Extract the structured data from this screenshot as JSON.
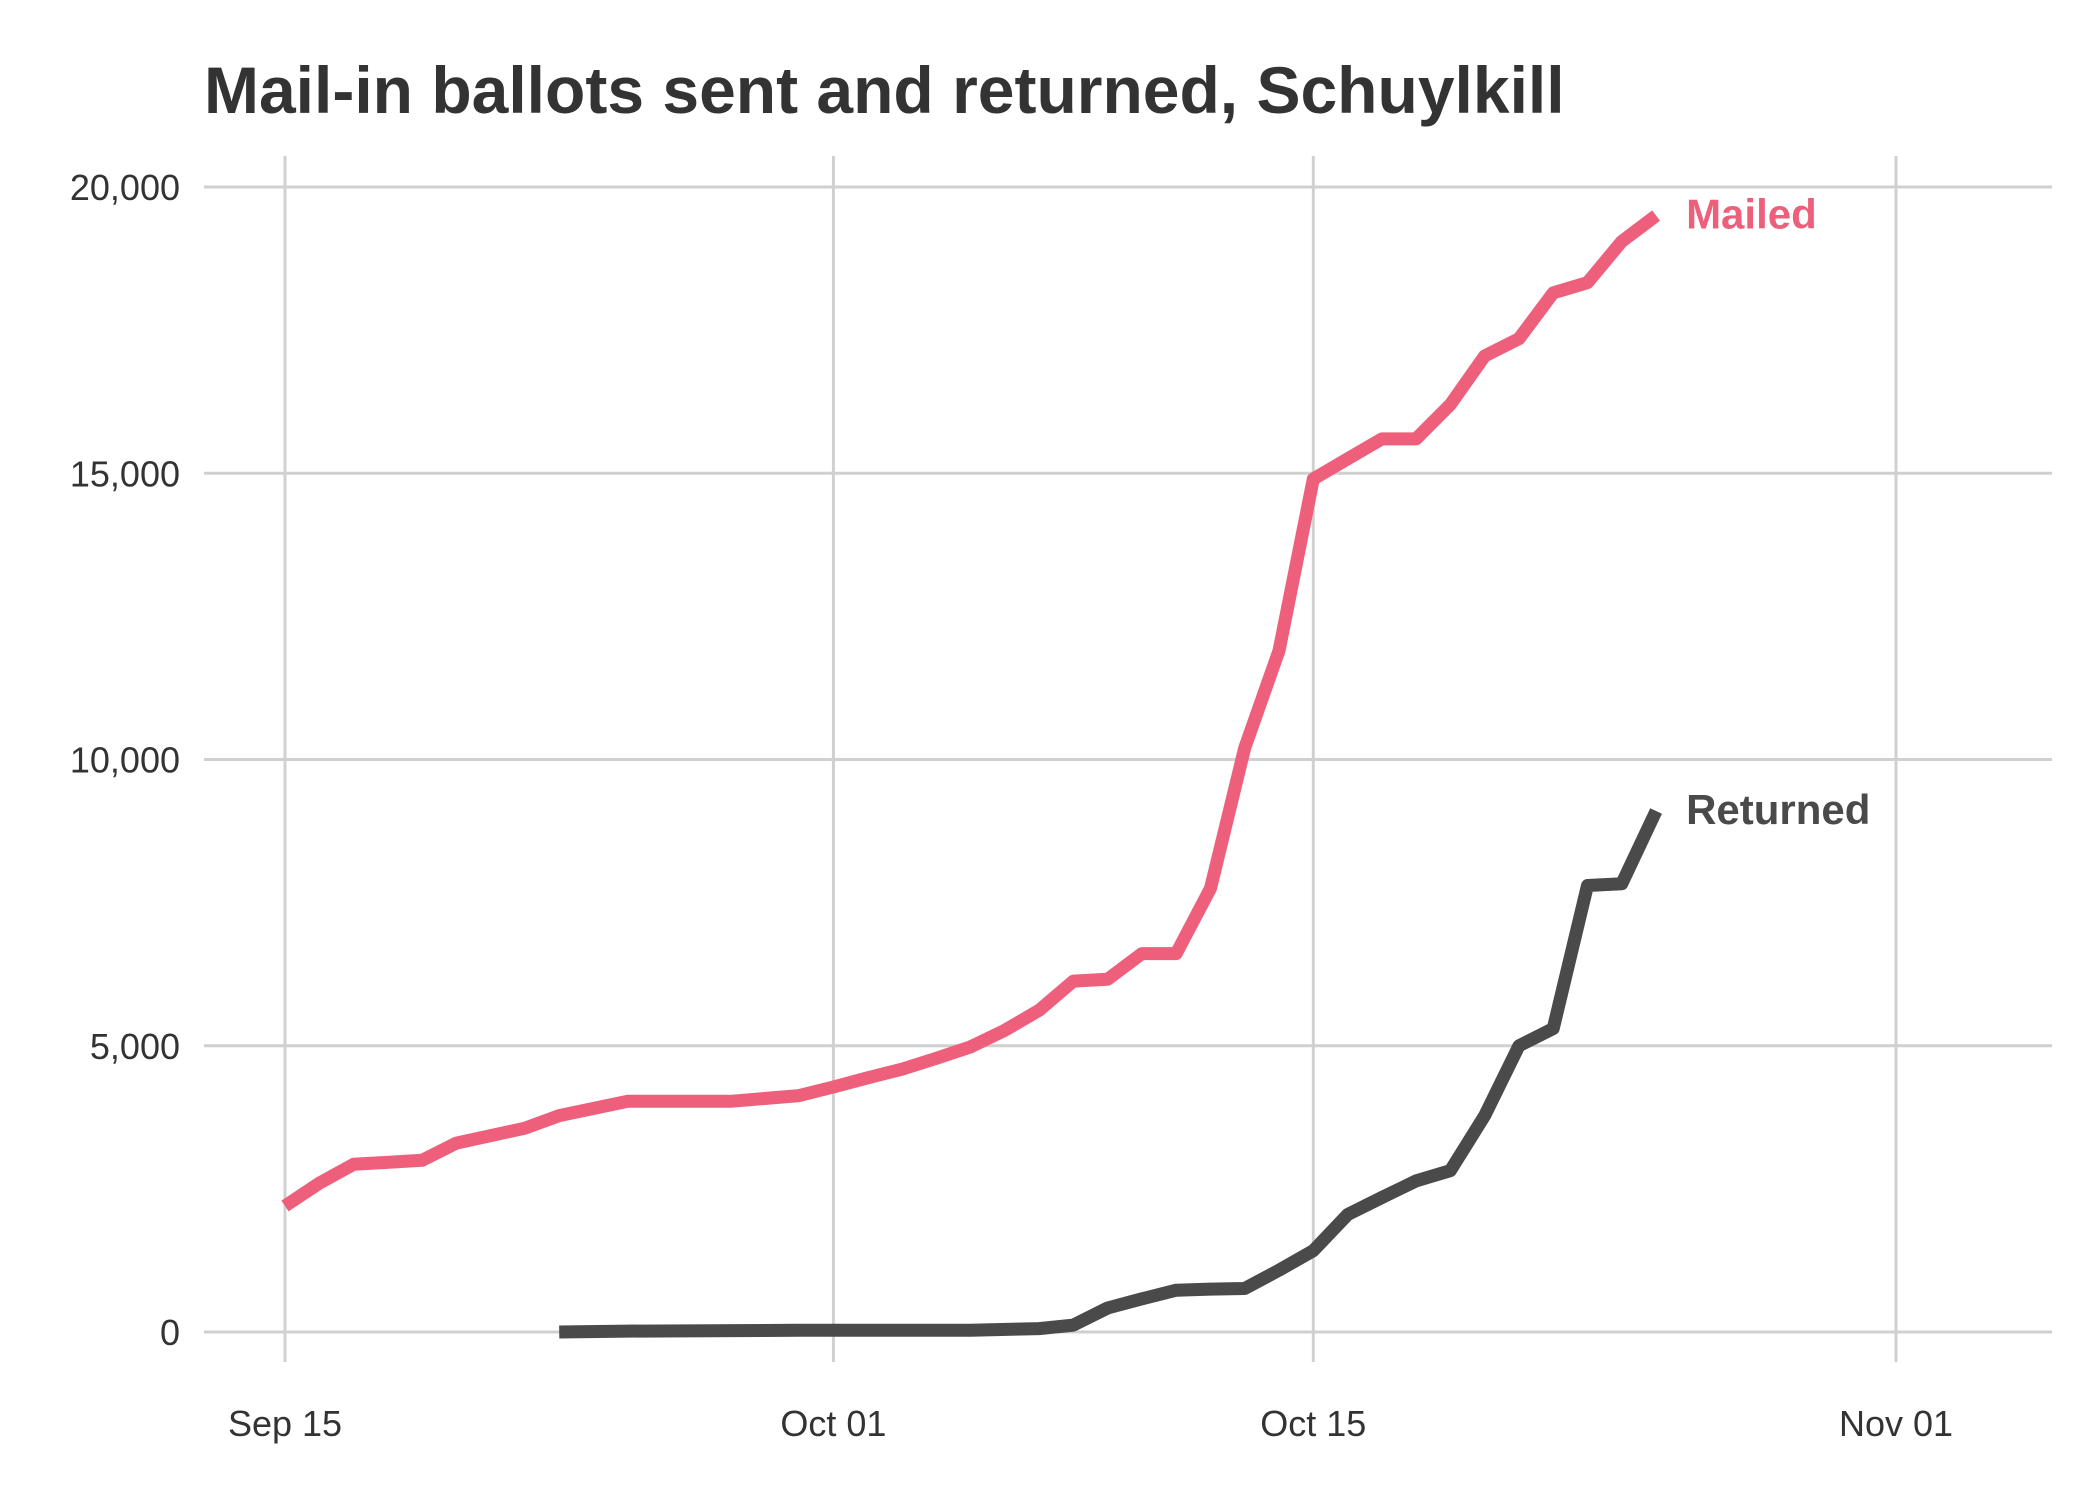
{
  "chart_data": {
    "type": "line",
    "title": "Mail-in ballots sent and returned, Schuylkill",
    "xlabel": "",
    "ylabel": "",
    "x_axis": {
      "range": [
        "2020-09-14",
        "2020-11-05"
      ],
      "ticks": [
        {
          "date": "2020-09-15",
          "label": "Sep 15"
        },
        {
          "date": "2020-10-01",
          "label": "Oct 01"
        },
        {
          "date": "2020-10-15",
          "label": "Oct 15"
        },
        {
          "date": "2020-11-01",
          "label": "Nov 01"
        }
      ]
    },
    "y_axis": {
      "range": [
        0,
        20000
      ],
      "ticks": [
        {
          "value": 0,
          "label": "0"
        },
        {
          "value": 5000,
          "label": "5,000"
        },
        {
          "value": 10000,
          "label": "10,000"
        },
        {
          "value": 15000,
          "label": "15,000"
        },
        {
          "value": 20000,
          "label": "20,000"
        }
      ]
    },
    "grid": true,
    "legend": "none (direct labels at line ends)",
    "series": [
      {
        "name": "Mailed",
        "color": "#EE5F7B",
        "points": [
          [
            "2020-09-15",
            2200
          ],
          [
            "2020-09-16",
            2600
          ],
          [
            "2020-09-17",
            2930
          ],
          [
            "2020-09-19",
            3000
          ],
          [
            "2020-09-20",
            3300
          ],
          [
            "2020-09-22",
            3560
          ],
          [
            "2020-09-23",
            3780
          ],
          [
            "2020-09-25",
            4030
          ],
          [
            "2020-09-28",
            4030
          ],
          [
            "2020-09-30",
            4130
          ],
          [
            "2020-10-01",
            4280
          ],
          [
            "2020-10-02",
            4440
          ],
          [
            "2020-10-03",
            4590
          ],
          [
            "2020-10-04",
            4780
          ],
          [
            "2020-10-05",
            4980
          ],
          [
            "2020-10-06",
            5270
          ],
          [
            "2020-10-07",
            5620
          ],
          [
            "2020-10-08",
            6130
          ],
          [
            "2020-10-09",
            6160
          ],
          [
            "2020-10-10",
            6610
          ],
          [
            "2020-10-11",
            6610
          ],
          [
            "2020-10-12",
            7750
          ],
          [
            "2020-10-13",
            10200
          ],
          [
            "2020-10-14",
            11900
          ],
          [
            "2020-10-15",
            14900
          ],
          [
            "2020-10-16",
            15250
          ],
          [
            "2020-10-17",
            15600
          ],
          [
            "2020-10-18",
            15600
          ],
          [
            "2020-10-19",
            16200
          ],
          [
            "2020-10-20",
            17050
          ],
          [
            "2020-10-21",
            17350
          ],
          [
            "2020-10-22",
            18150
          ],
          [
            "2020-10-23",
            18330
          ],
          [
            "2020-10-24",
            19050
          ],
          [
            "2020-10-25",
            19500
          ]
        ]
      },
      {
        "name": "Returned",
        "color": "#4A4A4A",
        "points": [
          [
            "2020-09-23",
            0
          ],
          [
            "2020-09-25",
            15
          ],
          [
            "2020-09-30",
            30
          ],
          [
            "2020-10-05",
            30
          ],
          [
            "2020-10-07",
            60
          ],
          [
            "2020-10-08",
            120
          ],
          [
            "2020-10-09",
            420
          ],
          [
            "2020-10-10",
            580
          ],
          [
            "2020-10-11",
            730
          ],
          [
            "2020-10-12",
            750
          ],
          [
            "2020-10-13",
            760
          ],
          [
            "2020-10-14",
            1080
          ],
          [
            "2020-10-15",
            1420
          ],
          [
            "2020-10-16",
            2050
          ],
          [
            "2020-10-17",
            2350
          ],
          [
            "2020-10-18",
            2640
          ],
          [
            "2020-10-19",
            2820
          ],
          [
            "2020-10-20",
            3780
          ],
          [
            "2020-10-21",
            5000
          ],
          [
            "2020-10-22",
            5300
          ],
          [
            "2020-10-23",
            7800
          ],
          [
            "2020-10-24",
            7830
          ],
          [
            "2020-10-25",
            9100
          ]
        ]
      }
    ]
  }
}
